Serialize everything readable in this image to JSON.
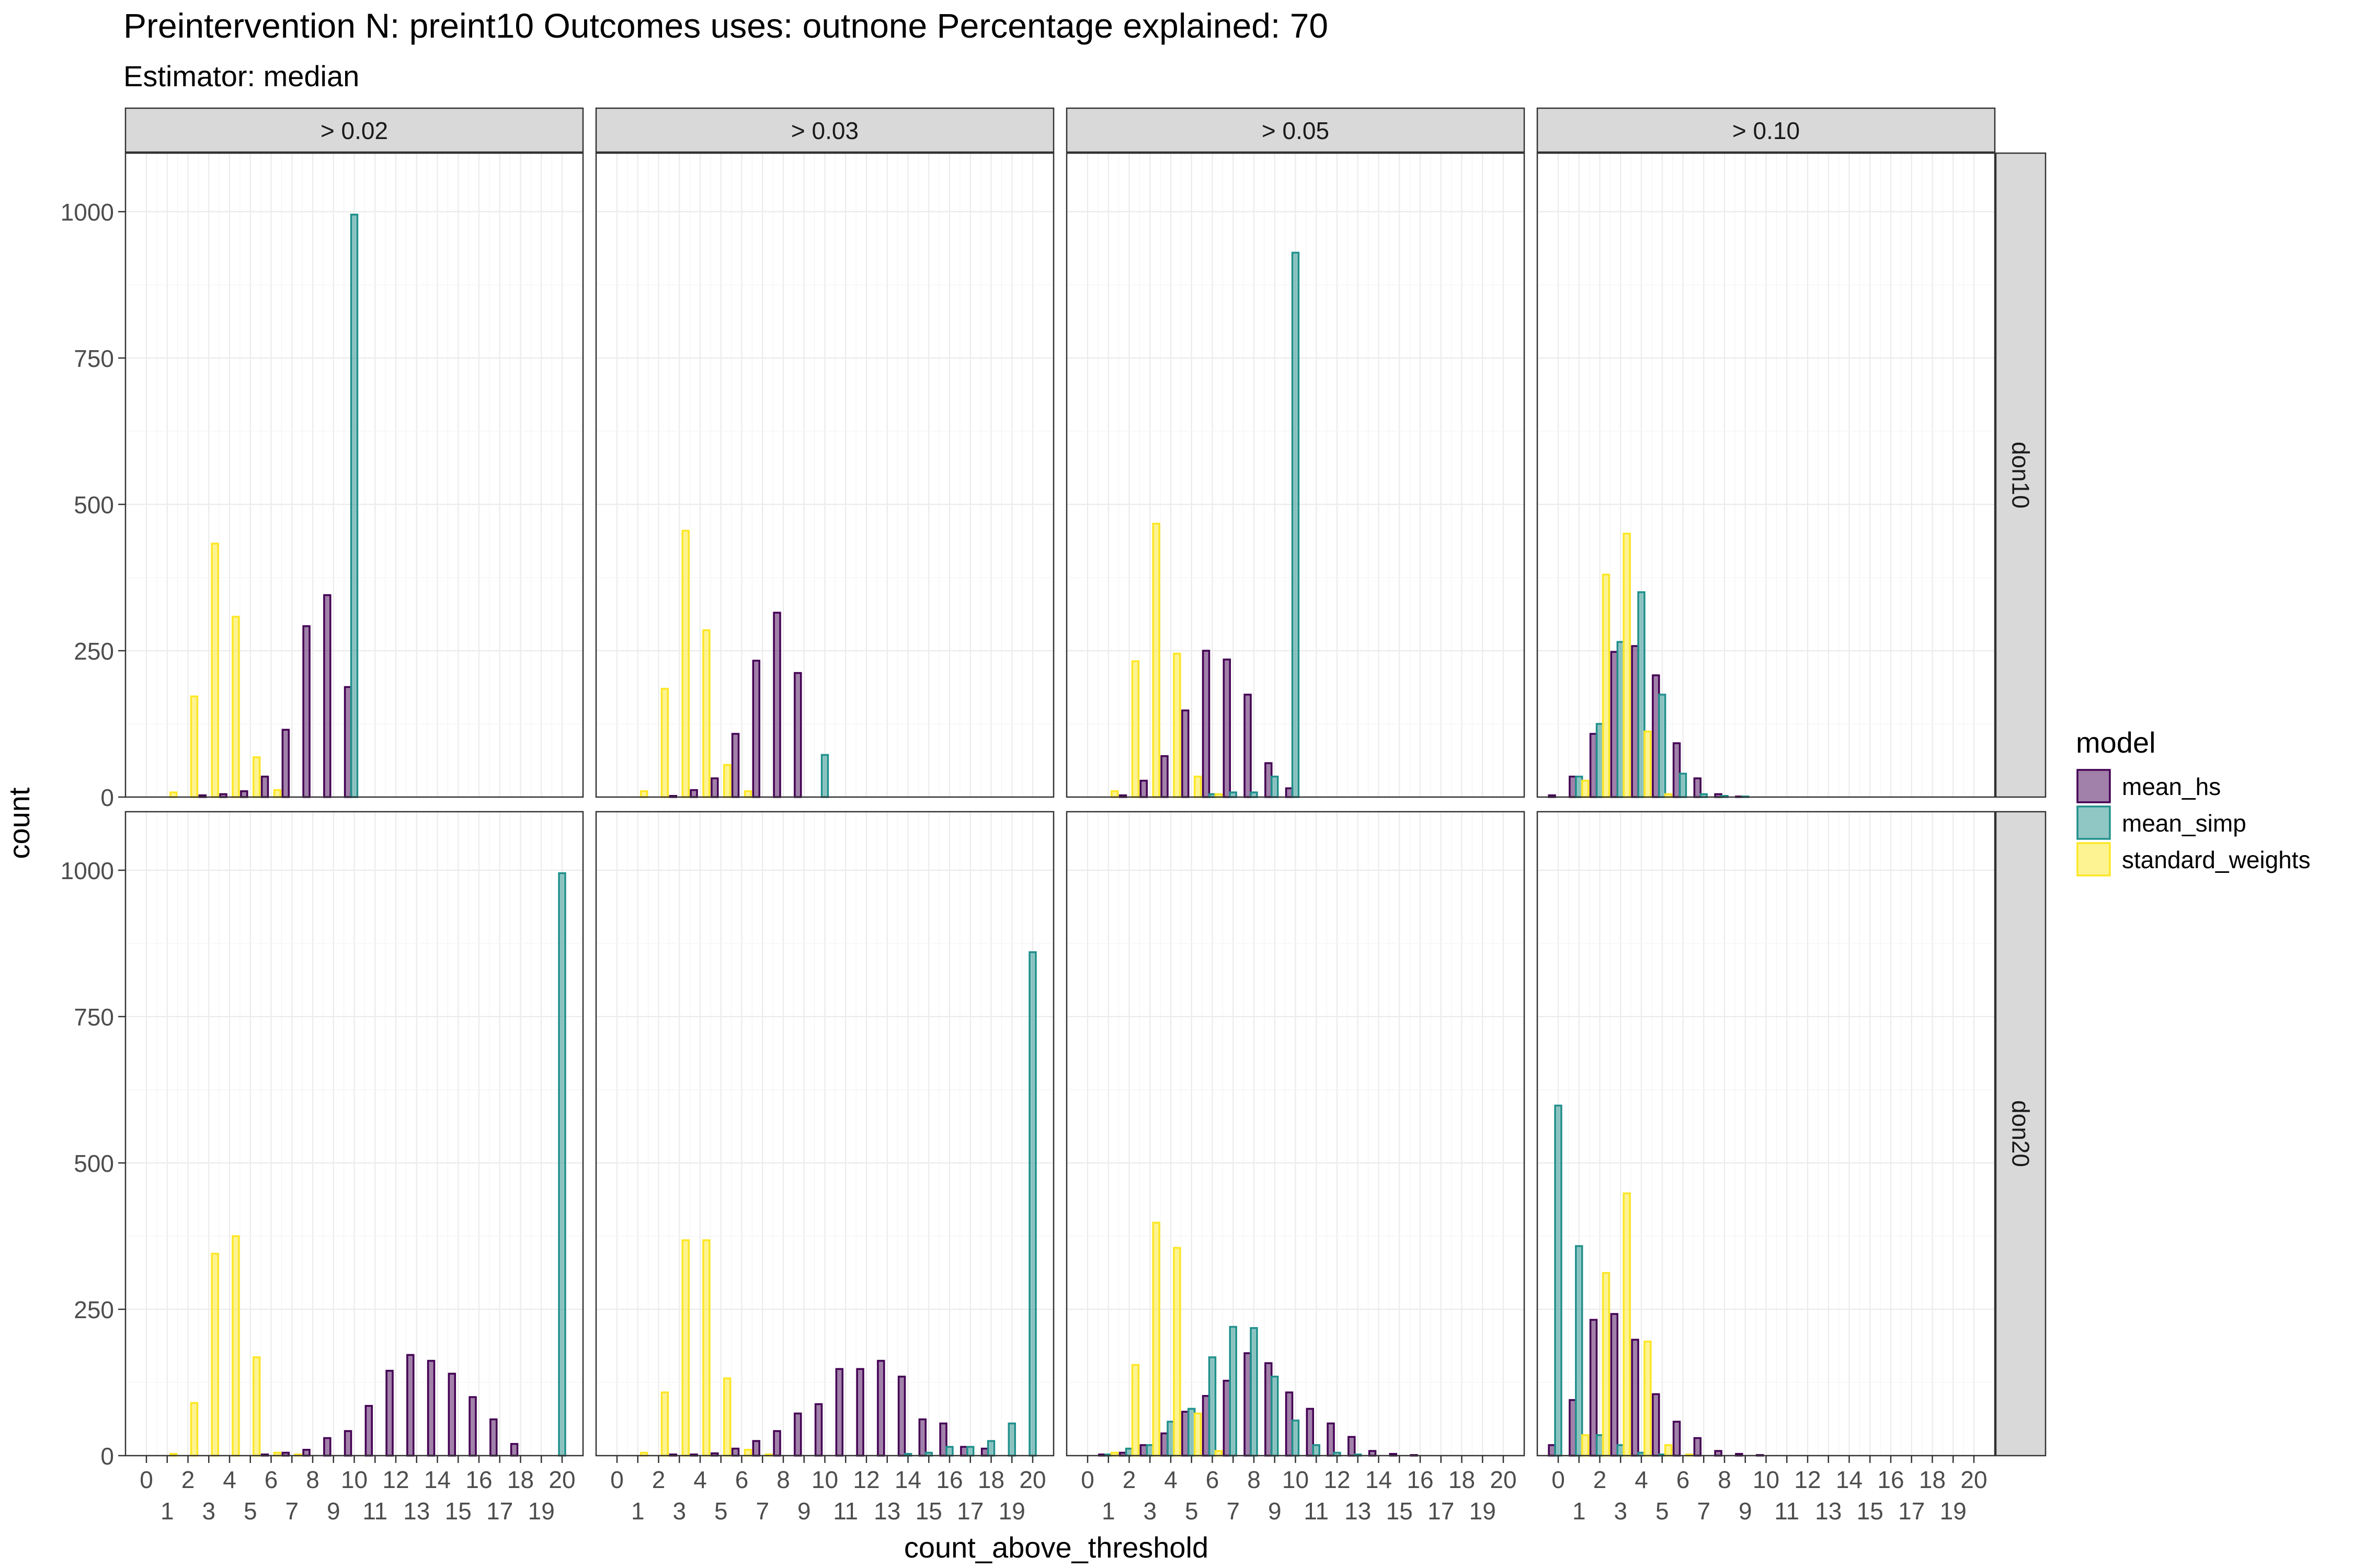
{
  "chart_data": {
    "type": "bar",
    "title": "Preintervention N: preint10 Outcomes uses: outnone Percentage explained: 70",
    "subtitle": "Estimator: median",
    "xlabel": "count_above_threshold",
    "ylabel": "count",
    "ylim": [
      0,
      1100
    ],
    "yticks": [
      0,
      250,
      500,
      750,
      1000
    ],
    "x_tick_labels": [
      "0",
      "1",
      "2",
      "3",
      "4",
      "5",
      "6",
      "7",
      "8",
      "9",
      "10",
      "11",
      "12",
      "13",
      "14",
      "15",
      "16",
      "17",
      "18",
      "19",
      "20"
    ],
    "col_facets": [
      "> 0.02",
      "> 0.03",
      "> 0.05",
      "> 0.10"
    ],
    "row_facets": [
      "don10",
      "don20"
    ],
    "grid": true,
    "legend": {
      "title": "model",
      "position": "right",
      "entries": [
        {
          "name": "mean_hs",
          "fill": "#440154",
          "stroke": "#440154"
        },
        {
          "name": "mean_simp",
          "fill": "#21908C",
          "stroke": "#21908C"
        },
        {
          "name": "standard_weights",
          "fill": "#FDE725",
          "stroke": "#FDE725"
        }
      ]
    },
    "panels": [
      {
        "row": "don10",
        "col": "> 0.02",
        "series": {
          "mean_hs": [
            0,
            0,
            0,
            3,
            5,
            10,
            35,
            115,
            292,
            345,
            188,
            0,
            0,
            0,
            0,
            0,
            0,
            0,
            0,
            0,
            0
          ],
          "mean_simp": [
            0,
            0,
            0,
            0,
            0,
            0,
            0,
            0,
            0,
            0,
            995,
            0,
            0,
            0,
            0,
            0,
            0,
            0,
            0,
            0,
            0
          ],
          "standard_weights": [
            0,
            8,
            172,
            433,
            308,
            68,
            12,
            0,
            0,
            0,
            0,
            0,
            0,
            0,
            0,
            0,
            0,
            0,
            0,
            0,
            0
          ]
        }
      },
      {
        "row": "don10",
        "col": "> 0.03",
        "series": {
          "mean_hs": [
            0,
            0,
            0,
            2,
            12,
            32,
            108,
            233,
            315,
            212,
            0,
            0,
            0,
            0,
            0,
            0,
            0,
            0,
            0,
            0,
            0
          ],
          "mean_simp": [
            0,
            0,
            0,
            0,
            0,
            0,
            0,
            0,
            0,
            0,
            72,
            0,
            0,
            0,
            0,
            0,
            0,
            0,
            0,
            0,
            0
          ],
          "standard_weights": [
            0,
            10,
            185,
            455,
            285,
            55,
            10,
            0,
            0,
            0,
            0,
            0,
            0,
            0,
            0,
            0,
            0,
            0,
            0,
            0,
            0
          ]
        }
      },
      {
        "row": "don10",
        "col": "> 0.05",
        "series": {
          "mean_hs": [
            0,
            0,
            3,
            28,
            70,
            148,
            250,
            235,
            175,
            58,
            15,
            0,
            0,
            0,
            0,
            0,
            0,
            0,
            0,
            0,
            0
          ],
          "mean_simp": [
            0,
            0,
            0,
            0,
            0,
            0,
            5,
            8,
            8,
            35,
            930,
            0,
            0,
            0,
            0,
            0,
            0,
            0,
            0,
            0,
            0
          ],
          "standard_weights": [
            0,
            10,
            232,
            467,
            245,
            35,
            5,
            0,
            0,
            0,
            0,
            0,
            0,
            0,
            0,
            0,
            0,
            0,
            0,
            0,
            0
          ]
        }
      },
      {
        "row": "don10",
        "col": "> 0.10",
        "series": {
          "mean_hs": [
            3,
            35,
            108,
            248,
            258,
            208,
            92,
            32,
            5,
            1,
            0,
            0,
            0,
            0,
            0,
            0,
            0,
            0,
            0,
            0,
            0
          ],
          "mean_simp": [
            0,
            35,
            125,
            265,
            350,
            175,
            40,
            5,
            2,
            1,
            0,
            0,
            0,
            0,
            0,
            0,
            0,
            0,
            0,
            0,
            0
          ],
          "standard_weights": [
            0,
            28,
            380,
            450,
            112,
            5,
            0,
            0,
            0,
            0,
            0,
            0,
            0,
            0,
            0,
            0,
            0,
            0,
            0,
            0,
            0
          ]
        }
      },
      {
        "row": "don20",
        "col": "> 0.02",
        "series": {
          "mean_hs": [
            0,
            0,
            0,
            0,
            0,
            0,
            2,
            5,
            10,
            30,
            42,
            85,
            145,
            172,
            162,
            140,
            100,
            62,
            20,
            0,
            0
          ],
          "mean_simp": [
            0,
            0,
            0,
            0,
            0,
            0,
            0,
            0,
            0,
            0,
            0,
            0,
            0,
            0,
            0,
            0,
            0,
            0,
            0,
            0,
            995
          ],
          "standard_weights": [
            0,
            3,
            90,
            345,
            375,
            168,
            5,
            2,
            0,
            0,
            0,
            0,
            0,
            0,
            0,
            0,
            0,
            0,
            0,
            0,
            0
          ]
        }
      },
      {
        "row": "don20",
        "col": "> 0.03",
        "series": {
          "mean_hs": [
            0,
            0,
            0,
            2,
            2,
            4,
            12,
            25,
            42,
            72,
            88,
            148,
            148,
            162,
            135,
            62,
            55,
            15,
            12,
            0,
            0
          ],
          "mean_simp": [
            0,
            0,
            0,
            0,
            0,
            0,
            0,
            0,
            0,
            0,
            0,
            0,
            0,
            0,
            3,
            5,
            15,
            15,
            25,
            55,
            860
          ],
          "standard_weights": [
            0,
            5,
            108,
            368,
            368,
            132,
            10,
            2,
            0,
            0,
            0,
            0,
            0,
            0,
            0,
            0,
            0,
            0,
            0,
            0,
            0
          ]
        }
      },
      {
        "row": "don20",
        "col": "> 0.05",
        "series": {
          "mean_hs": [
            0,
            2,
            5,
            18,
            38,
            75,
            102,
            128,
            175,
            158,
            108,
            80,
            55,
            32,
            8,
            3,
            1,
            0,
            0,
            0,
            0
          ],
          "mean_simp": [
            0,
            2,
            12,
            18,
            58,
            80,
            168,
            220,
            218,
            135,
            60,
            18,
            5,
            2,
            0,
            0,
            0,
            0,
            0,
            0,
            0
          ],
          "standard_weights": [
            0,
            5,
            155,
            398,
            355,
            72,
            8,
            0,
            0,
            0,
            0,
            0,
            0,
            0,
            0,
            0,
            0,
            0,
            0,
            0,
            0
          ]
        }
      },
      {
        "row": "don20",
        "col": "> 0.10",
        "series": {
          "mean_hs": [
            18,
            95,
            232,
            242,
            198,
            105,
            58,
            30,
            8,
            3,
            1,
            0,
            0,
            0,
            0,
            0,
            0,
            0,
            0,
            0,
            0
          ],
          "mean_simp": [
            598,
            358,
            35,
            18,
            5,
            2,
            0,
            0,
            0,
            0,
            0,
            0,
            0,
            0,
            0,
            0,
            0,
            0,
            0,
            0,
            0
          ],
          "standard_weights": [
            0,
            35,
            312,
            448,
            195,
            18,
            2,
            0,
            0,
            0,
            0,
            0,
            0,
            0,
            0,
            0,
            0,
            0,
            0,
            0,
            0
          ]
        }
      }
    ]
  }
}
